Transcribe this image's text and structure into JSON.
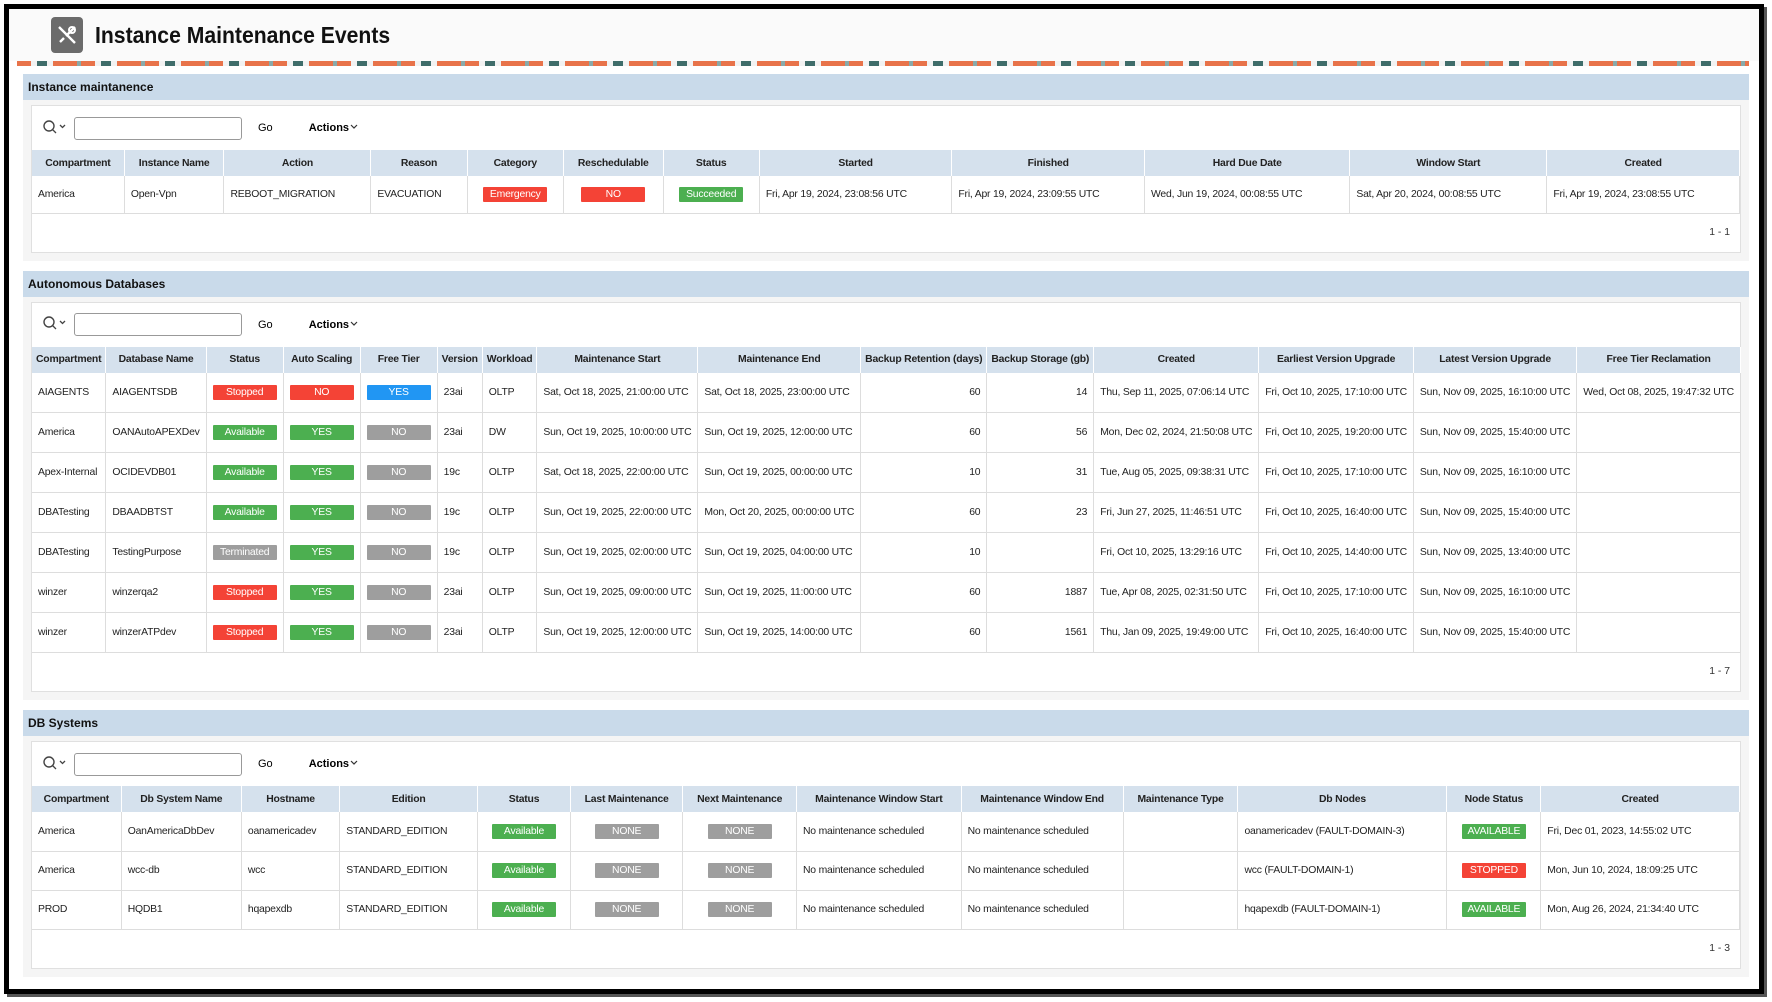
{
  "header": {
    "title": "Instance Maintenance Events"
  },
  "regions": [
    {
      "title": "Instance maintanence",
      "go": "Go",
      "actions": "Actions",
      "columns": [
        "Compartment",
        "Instance Name",
        "Action",
        "Reason",
        "Category",
        "Reschedulable",
        "Status",
        "Started",
        "Finished",
        "Hard Due Date",
        "Window Start",
        "Created"
      ],
      "rows": [
        [
          "America",
          "Open-Vpn",
          "REBOOT_MIGRATION",
          "EVACUATION",
          {
            "text": "Emergency",
            "color": "#f44336"
          },
          {
            "text": "NO",
            "color": "#f44336"
          },
          {
            "text": "Succeeded",
            "color": "#4caf50"
          },
          "Fri, Apr 19, 2024, 23:08:56 UTC",
          "Fri, Apr 19, 2024, 23:09:55 UTC",
          "Wed, Jun 19, 2024, 00:08:55 UTC",
          "Sat, Apr 20, 2024, 00:08:55 UTC",
          "Fri, Apr 19, 2024, 23:08:55 UTC"
        ]
      ],
      "pagination": "1 - 1"
    },
    {
      "title": "Autonomous Databases",
      "go": "Go",
      "actions": "Actions",
      "columns": [
        "Compartment",
        "Database Name",
        "Status",
        "Auto Scaling",
        "Free Tier",
        "Version",
        "Workload",
        "Maintenance Start",
        "Maintenance End",
        "Backup Retention (days)",
        "Backup Storage (gb)",
        "Created",
        "Earliest Version Upgrade",
        "Latest Version Upgrade",
        "Free Tier Reclamation"
      ],
      "rows": [
        [
          "AIAGENTS",
          "AIAGENTSDB",
          {
            "text": "Stopped",
            "color": "#f44336"
          },
          {
            "text": "NO",
            "color": "#f44336"
          },
          {
            "text": "YES",
            "color": "#2196f3"
          },
          "23ai",
          "OLTP",
          "Sat, Oct 18, 2025, 21:00:00 UTC",
          "Sat, Oct 18, 2025, 23:00:00 UTC",
          60,
          14,
          "Thu, Sep 11, 2025, 07:06:14 UTC",
          "Fri, Oct 10, 2025, 17:10:00 UTC",
          "Sun, Nov 09, 2025, 16:10:00 UTC",
          "Wed, Oct 08, 2025, 19:47:32 UTC"
        ],
        [
          "America",
          "OANAutoAPEXDev",
          {
            "text": "Available",
            "color": "#4caf50"
          },
          {
            "text": "YES",
            "color": "#4caf50"
          },
          {
            "text": "NO",
            "color": "#9e9e9e"
          },
          "23ai",
          "DW",
          "Sun, Oct 19, 2025, 10:00:00 UTC",
          "Sun, Oct 19, 2025, 12:00:00 UTC",
          60,
          56,
          "Mon, Dec 02, 2024, 21:50:08 UTC",
          "Fri, Oct 10, 2025, 19:20:00 UTC",
          "Sun, Nov 09, 2025, 15:40:00 UTC",
          null
        ],
        [
          "Apex-Internal",
          "OCIDEVDB01",
          {
            "text": "Available",
            "color": "#4caf50"
          },
          {
            "text": "YES",
            "color": "#4caf50"
          },
          {
            "text": "NO",
            "color": "#9e9e9e"
          },
          "19c",
          "OLTP",
          "Sat, Oct 18, 2025, 22:00:00 UTC",
          "Sun, Oct 19, 2025, 00:00:00 UTC",
          10,
          31,
          "Tue, Aug 05, 2025, 09:38:31 UTC",
          "Fri, Oct 10, 2025, 17:10:00 UTC",
          "Sun, Nov 09, 2025, 16:10:00 UTC",
          null
        ],
        [
          "DBATesting",
          "DBAADBTST",
          {
            "text": "Available",
            "color": "#4caf50"
          },
          {
            "text": "YES",
            "color": "#4caf50"
          },
          {
            "text": "NO",
            "color": "#9e9e9e"
          },
          "19c",
          "OLTP",
          "Sun, Oct 19, 2025, 22:00:00 UTC",
          "Mon, Oct 20, 2025, 00:00:00 UTC",
          60,
          23,
          "Fri, Jun 27, 2025, 11:46:51 UTC",
          "Fri, Oct 10, 2025, 16:40:00 UTC",
          "Sun, Nov 09, 2025, 15:40:00 UTC",
          null
        ],
        [
          "DBATesting",
          "TestingPurpose",
          {
            "text": "Terminated",
            "color": "#9e9e9e"
          },
          {
            "text": "YES",
            "color": "#4caf50"
          },
          {
            "text": "NO",
            "color": "#9e9e9e"
          },
          "19c",
          "OLTP",
          "Sun, Oct 19, 2025, 02:00:00 UTC",
          "Sun, Oct 19, 2025, 04:00:00 UTC",
          10,
          null,
          "Fri, Oct 10, 2025, 13:29:16 UTC",
          "Fri, Oct 10, 2025, 14:40:00 UTC",
          "Sun, Nov 09, 2025, 13:40:00 UTC",
          null
        ],
        [
          "winzer",
          "winzerqa2",
          {
            "text": "Stopped",
            "color": "#f44336"
          },
          {
            "text": "YES",
            "color": "#4caf50"
          },
          {
            "text": "NO",
            "color": "#9e9e9e"
          },
          "23ai",
          "OLTP",
          "Sun, Oct 19, 2025, 09:00:00 UTC",
          "Sun, Oct 19, 2025, 11:00:00 UTC",
          60,
          1887,
          "Tue, Apr 08, 2025, 02:31:50 UTC",
          "Fri, Oct 10, 2025, 17:10:00 UTC",
          "Sun, Nov 09, 2025, 16:10:00 UTC",
          null
        ],
        [
          "winzer",
          "winzerATPdev",
          {
            "text": "Stopped",
            "color": "#f44336"
          },
          {
            "text": "YES",
            "color": "#4caf50"
          },
          {
            "text": "NO",
            "color": "#9e9e9e"
          },
          "23ai",
          "OLTP",
          "Sun, Oct 19, 2025, 12:00:00 UTC",
          "Sun, Oct 19, 2025, 14:00:00 UTC",
          60,
          1561,
          "Thu, Jan 09, 2025, 19:49:00 UTC",
          "Fri, Oct 10, 2025, 16:40:00 UTC",
          "Sun, Nov 09, 2025, 15:40:00 UTC",
          null
        ]
      ],
      "pagination": "1 - 7"
    },
    {
      "title": "DB Systems",
      "go": "Go",
      "actions": "Actions",
      "columns": [
        "Compartment",
        "Db System Name",
        "Hostname",
        "Edition",
        "Status",
        "Last Maintenance",
        "Next Maintenance",
        "Maintenance Window Start",
        "Maintenance Window End",
        "Maintenance Type",
        "Db Nodes",
        "Node Status",
        "Created"
      ],
      "rows": [
        [
          "America",
          "OanAmericaDbDev",
          "oanamericadev",
          "STANDARD_EDITION",
          {
            "text": "Available",
            "color": "#4caf50"
          },
          {
            "text": "NONE",
            "color": "#9e9e9e"
          },
          {
            "text": "NONE",
            "color": "#9e9e9e"
          },
          "No maintenance scheduled",
          "No maintenance scheduled",
          null,
          "oanamericadev (FAULT-DOMAIN-3)",
          {
            "text": "AVAILABLE",
            "color": "#4caf50"
          },
          "Fri, Dec 01, 2023, 14:55:02 UTC"
        ],
        [
          "America",
          "wcc-db",
          "wcc",
          "STANDARD_EDITION",
          {
            "text": "Available",
            "color": "#4caf50"
          },
          {
            "text": "NONE",
            "color": "#9e9e9e"
          },
          {
            "text": "NONE",
            "color": "#9e9e9e"
          },
          "No maintenance scheduled",
          "No maintenance scheduled",
          null,
          "wcc (FAULT-DOMAIN-1)",
          {
            "text": "STOPPED",
            "color": "#f44336"
          },
          "Mon, Jun 10, 2024, 18:09:25 UTC"
        ],
        [
          "PROD",
          "HQDB1",
          "hqapexdb",
          "STANDARD_EDITION",
          {
            "text": "Available",
            "color": "#4caf50"
          },
          {
            "text": "NONE",
            "color": "#9e9e9e"
          },
          {
            "text": "NONE",
            "color": "#9e9e9e"
          },
          "No maintenance scheduled",
          "No maintenance scheduled",
          null,
          "hqapexdb (FAULT-DOMAIN-1)",
          {
            "text": "AVAILABLE",
            "color": "#4caf50"
          },
          "Mon, Aug 26, 2024, 21:34:40 UTC"
        ]
      ],
      "pagination": "1 - 3"
    }
  ]
}
